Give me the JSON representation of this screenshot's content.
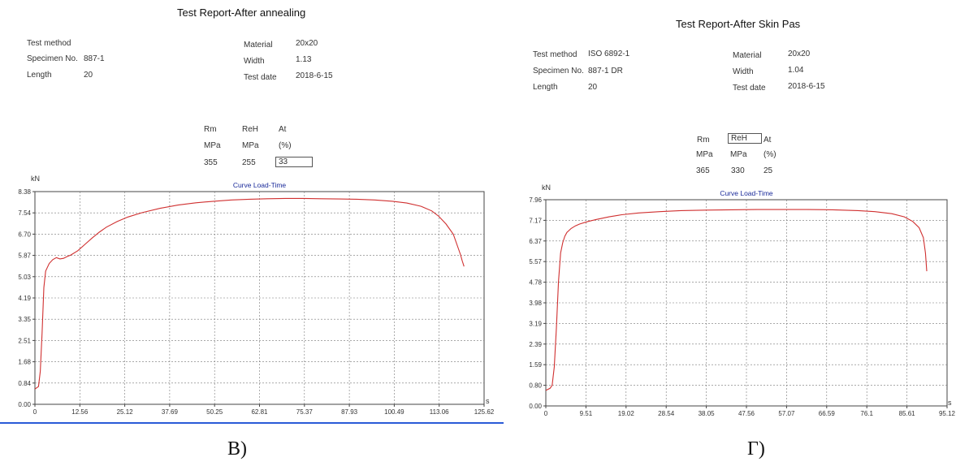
{
  "panels": [
    {
      "title": "Test Report-After annealing",
      "info_left": [
        {
          "label": "Test method",
          "value": ""
        },
        {
          "label": "Specimen No.",
          "value": "887-1"
        },
        {
          "label": "Length",
          "value": "20"
        }
      ],
      "info_right": [
        {
          "label": "Material",
          "value": "20x20"
        },
        {
          "label": "Width",
          "value": "1.13"
        },
        {
          "label": "Test date",
          "value": "2018-6-15"
        }
      ],
      "results": {
        "headers": [
          "Rm",
          "ReH",
          "At"
        ],
        "units": [
          "MPa",
          "MPa",
          "(%)"
        ],
        "values": [
          "355",
          "255",
          "33"
        ]
      },
      "caption": "В)"
    },
    {
      "title": "Test Report-After Skin Pas",
      "info_left": [
        {
          "label": "Test method",
          "value": "ISO 6892-1"
        },
        {
          "label": "Specimen No.",
          "value": "887-1 DR"
        },
        {
          "label": "Length",
          "value": "20"
        }
      ],
      "info_right": [
        {
          "label": "Material",
          "value": "20x20"
        },
        {
          "label": "Width",
          "value": "1.04"
        },
        {
          "label": "Test date",
          "value": "2018-6-15"
        }
      ],
      "results": {
        "headers": [
          "Rm",
          "ReH",
          "At"
        ],
        "units": [
          "MPa",
          "MPa",
          "(%)"
        ],
        "values": [
          "365",
          "330",
          "25"
        ]
      },
      "caption": "Г)"
    }
  ],
  "chart_data": [
    {
      "type": "line",
      "title": "Curve Load-Time",
      "xlabel": "s",
      "ylabel": "kN",
      "xlim": [
        0,
        125.62
      ],
      "ylim": [
        0,
        8.38
      ],
      "x_ticks": [
        "0",
        "12.56",
        "25.12",
        "37.69",
        "50.25",
        "62.81",
        "75.37",
        "87.93",
        "100.49",
        "113.06",
        "125.62"
      ],
      "y_ticks": [
        "0.00",
        "0.84",
        "1.68",
        "2.51",
        "3.35",
        "4.19",
        "5.03",
        "5.87",
        "6.70",
        "7.54",
        "8.38"
      ],
      "grid": true,
      "line_color": "#d03030",
      "series": [
        {
          "x": [
            0,
            1,
            1.5,
            2,
            2.5,
            3,
            3.5,
            4,
            5,
            6,
            7,
            8,
            9,
            10,
            12,
            14,
            16,
            18,
            20,
            23,
            26,
            30,
            35,
            40,
            45,
            50,
            55,
            60,
            65,
            70,
            75,
            80,
            85,
            90,
            95,
            100,
            104,
            108,
            111,
            113,
            115,
            117,
            118,
            119,
            119.5,
            120
          ],
          "y": [
            0.6,
            0.7,
            1.3,
            2.8,
            4.6,
            5.25,
            5.4,
            5.55,
            5.7,
            5.78,
            5.73,
            5.75,
            5.82,
            5.88,
            6.05,
            6.3,
            6.55,
            6.78,
            6.98,
            7.2,
            7.38,
            7.55,
            7.72,
            7.85,
            7.94,
            8.0,
            8.05,
            8.08,
            8.1,
            8.11,
            8.11,
            8.1,
            8.09,
            8.08,
            8.05,
            8.0,
            7.93,
            7.8,
            7.62,
            7.4,
            7.1,
            6.7,
            6.3,
            5.9,
            5.65,
            5.43
          ]
        }
      ]
    },
    {
      "type": "line",
      "title": "Curve Load-Time",
      "xlabel": "s",
      "ylabel": "kN",
      "xlim": [
        0,
        95.12
      ],
      "ylim": [
        0,
        7.96
      ],
      "x_ticks": [
        "0",
        "9.51",
        "19.02",
        "28.54",
        "38.05",
        "47.56",
        "57.07",
        "66.59",
        "76.1",
        "85.61",
        "95.12"
      ],
      "y_ticks": [
        "0.00",
        "0.80",
        "1.59",
        "2.39",
        "3.19",
        "3.98",
        "4.78",
        "5.57",
        "6.37",
        "7.17",
        "7.96"
      ],
      "grid": true,
      "line_color": "#d03030",
      "series": [
        {
          "x": [
            0,
            1,
            1.5,
            2,
            2.5,
            3,
            3.5,
            4,
            4.5,
            5,
            6,
            7,
            8,
            10,
            12,
            15,
            18,
            22,
            27,
            32,
            38,
            44,
            50,
            56,
            62,
            68,
            74,
            78,
            82,
            85,
            87,
            88.5,
            89.5,
            90,
            90.3
          ],
          "y": [
            0.6,
            0.68,
            0.8,
            1.5,
            3.0,
            4.8,
            5.9,
            6.3,
            6.55,
            6.7,
            6.85,
            6.95,
            7.02,
            7.12,
            7.2,
            7.3,
            7.38,
            7.45,
            7.5,
            7.54,
            7.56,
            7.57,
            7.58,
            7.58,
            7.58,
            7.57,
            7.54,
            7.5,
            7.42,
            7.3,
            7.12,
            6.88,
            6.5,
            5.9,
            5.2
          ]
        }
      ]
    }
  ]
}
